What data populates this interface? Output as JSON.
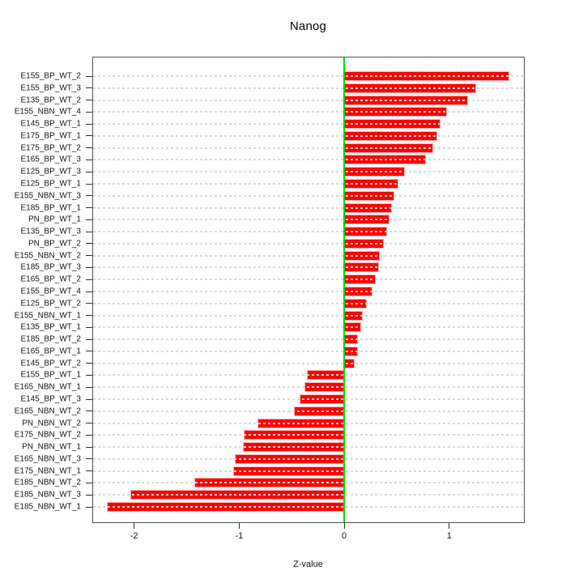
{
  "chart_data": {
    "type": "bar",
    "orientation": "horizontal",
    "title": "Nanog",
    "xlabel": "Z-value",
    "ylabel": "",
    "xlim": [
      -2.39,
      1.71
    ],
    "x_ticks": [
      -2,
      -1,
      0,
      1
    ],
    "grid": "dashed-horizontal-per-row",
    "legend": "none",
    "zero_reference_line": 0,
    "categories": [
      "E155_BP_WT_2",
      "E155_BP_WT_3",
      "E135_BP_WT_2",
      "E155_NBN_WT_4",
      "E145_BP_WT_1",
      "E175_BP_WT_1",
      "E175_BP_WT_2",
      "E165_BP_WT_3",
      "E125_BP_WT_3",
      "E125_BP_WT_1",
      "E155_NBN_WT_3",
      "E185_BP_WT_1",
      "PN_BP_WT_1",
      "E135_BP_WT_3",
      "PN_BP_WT_2",
      "E155_NBN_WT_2",
      "E185_BP_WT_3",
      "E165_BP_WT_2",
      "E155_BP_WT_4",
      "E125_BP_WT_2",
      "E155_NBN_WT_1",
      "E135_BP_WT_1",
      "E185_BP_WT_2",
      "E165_BP_WT_1",
      "E145_BP_WT_2",
      "E155_BP_WT_1",
      "E165_NBN_WT_1",
      "E145_BP_WT_3",
      "E165_NBN_WT_2",
      "PN_NBN_WT_2",
      "E175_NBN_WT_2",
      "PN_NBN_WT_1",
      "E165_NBN_WT_3",
      "E175_NBN_WT_1",
      "E185_NBN_WT_2",
      "E185_NBN_WT_3",
      "E185_NBN_WT_1"
    ],
    "values": [
      1.56,
      1.25,
      1.17,
      0.97,
      0.91,
      0.88,
      0.84,
      0.77,
      0.57,
      0.51,
      0.47,
      0.45,
      0.42,
      0.4,
      0.37,
      0.33,
      0.32,
      0.29,
      0.26,
      0.21,
      0.17,
      0.15,
      0.12,
      0.12,
      0.09,
      -0.35,
      -0.37,
      -0.42,
      -0.47,
      -0.82,
      -0.95,
      -0.96,
      -1.03,
      -1.05,
      -1.42,
      -2.03,
      -2.25
    ]
  },
  "colors": {
    "bar": "#ff0000",
    "bar_outline": "#ffb0b0",
    "zero_line": "#00dd00",
    "grid_line": "#d8d8d8",
    "box_border": "#505050",
    "text": "#111111"
  }
}
